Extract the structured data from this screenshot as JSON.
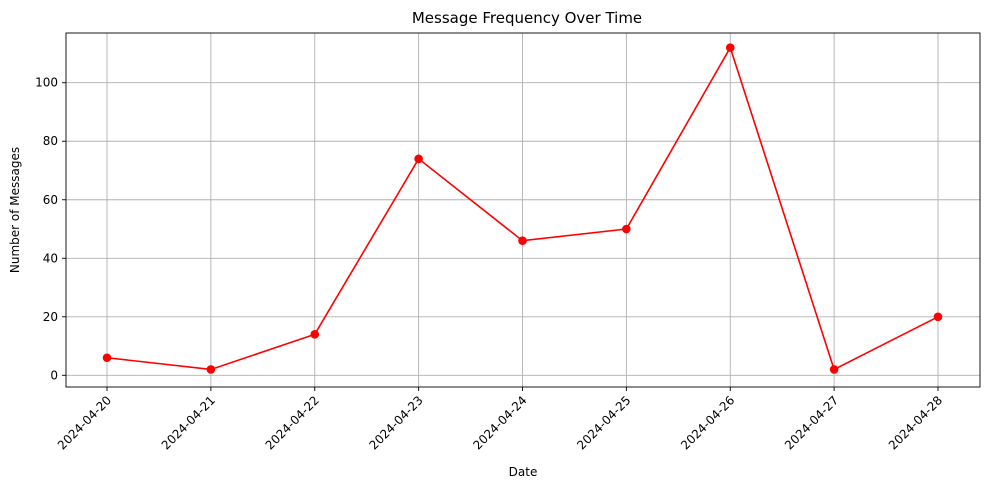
{
  "chart_data": {
    "type": "line",
    "title": "Message Frequency Over Time",
    "xlabel": "Date",
    "ylabel": "Number of Messages",
    "categories": [
      "2024-04-20",
      "2024-04-21",
      "2024-04-22",
      "2024-04-23",
      "2024-04-24",
      "2024-04-25",
      "2024-04-26",
      "2024-04-27",
      "2024-04-28"
    ],
    "series": [
      {
        "values": [
          6,
          2,
          14,
          74,
          46,
          50,
          112,
          2,
          20
        ]
      }
    ],
    "yticks": [
      0,
      20,
      40,
      60,
      80,
      100
    ],
    "ylim": [
      -4,
      117
    ],
    "grid": true,
    "line_color": "#ff0000",
    "marker": "circle",
    "xtick_rotation": 45
  }
}
